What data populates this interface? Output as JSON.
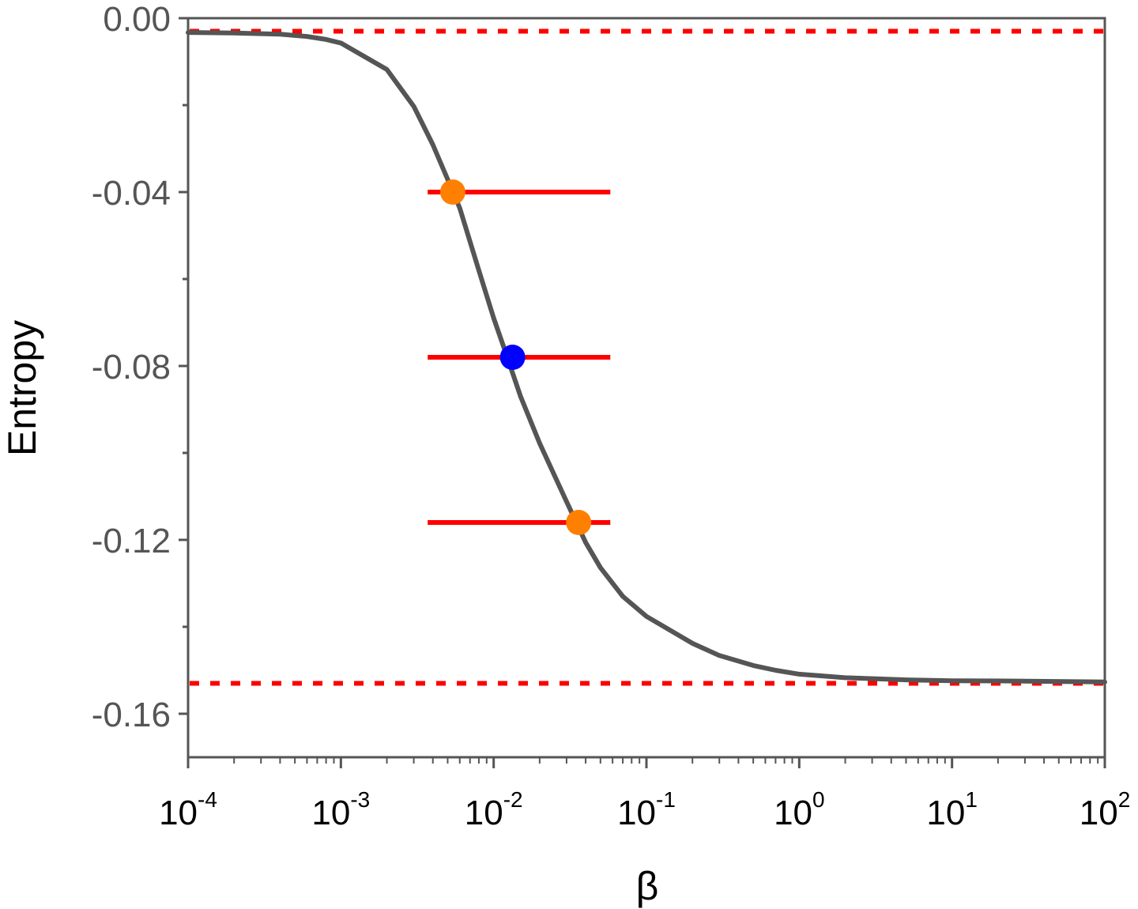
{
  "chart_data": {
    "type": "line",
    "title": "",
    "xlabel": "β",
    "ylabel": "Entropy",
    "xscale": "log",
    "xlim": [
      0.0001,
      100
    ],
    "ylim": [
      -0.17,
      0.0
    ],
    "grid": false,
    "legend": "none",
    "xticks": [
      {
        "base": "10",
        "exp": "-4",
        "value": 0.0001
      },
      {
        "base": "10",
        "exp": "-3",
        "value": 0.001
      },
      {
        "base": "10",
        "exp": "-2",
        "value": 0.01
      },
      {
        "base": "10",
        "exp": "-1",
        "value": 0.1
      },
      {
        "base": "10",
        "exp": "0",
        "value": 1
      },
      {
        "base": "10",
        "exp": "1",
        "value": 10
      },
      {
        "base": "10",
        "exp": "2",
        "value": 100
      }
    ],
    "yticks": [
      {
        "label": "0.00",
        "value": 0.0
      },
      {
        "label": "-0.04",
        "value": -0.04
      },
      {
        "label": "-0.08",
        "value": -0.08
      },
      {
        "label": "-0.12",
        "value": -0.12
      },
      {
        "label": "-0.16",
        "value": -0.16
      }
    ],
    "series": [
      {
        "color": "#555555",
        "x": [
          0.0001,
          0.0002,
          0.0004,
          0.0006,
          0.0008,
          0.001,
          0.002,
          0.003,
          0.004,
          0.005,
          0.006,
          0.008,
          0.01,
          0.012,
          0.015,
          0.02,
          0.03,
          0.04,
          0.05,
          0.07,
          0.1,
          0.2,
          0.3,
          0.5,
          0.7,
          1,
          2,
          5,
          10,
          30,
          100
        ],
        "y": [
          -0.0033,
          -0.0034,
          -0.0037,
          -0.0042,
          -0.0049,
          -0.0057,
          -0.0118,
          -0.0203,
          -0.0291,
          -0.0371,
          -0.0437,
          -0.058,
          -0.069,
          -0.077,
          -0.087,
          -0.0978,
          -0.1112,
          -0.1206,
          -0.1264,
          -0.133,
          -0.1376,
          -0.1438,
          -0.1466,
          -0.1489,
          -0.15,
          -0.1509,
          -0.1517,
          -0.1522,
          -0.1524,
          -0.1525,
          -0.1527
        ]
      }
    ],
    "reference_lines": [
      {
        "y": -0.003,
        "style": "dotted",
        "color": "#ff0000"
      },
      {
        "y": -0.153,
        "style": "dotted",
        "color": "#ff0000"
      }
    ],
    "error_bars": [
      {
        "y": -0.04,
        "x_low": 0.0037,
        "x_high": 0.058,
        "color": "#ff0000"
      },
      {
        "y": -0.078,
        "x_low": 0.0037,
        "x_high": 0.058,
        "color": "#ff0000"
      },
      {
        "y": -0.116,
        "x_low": 0.0037,
        "x_high": 0.058,
        "color": "#ff0000"
      }
    ],
    "points": [
      {
        "x": 0.0054,
        "y": -0.04,
        "color": "#ff8000"
      },
      {
        "x": 0.0133,
        "y": -0.078,
        "color": "#0000ff"
      },
      {
        "x": 0.036,
        "y": -0.116,
        "color": "#ff8000"
      }
    ]
  }
}
